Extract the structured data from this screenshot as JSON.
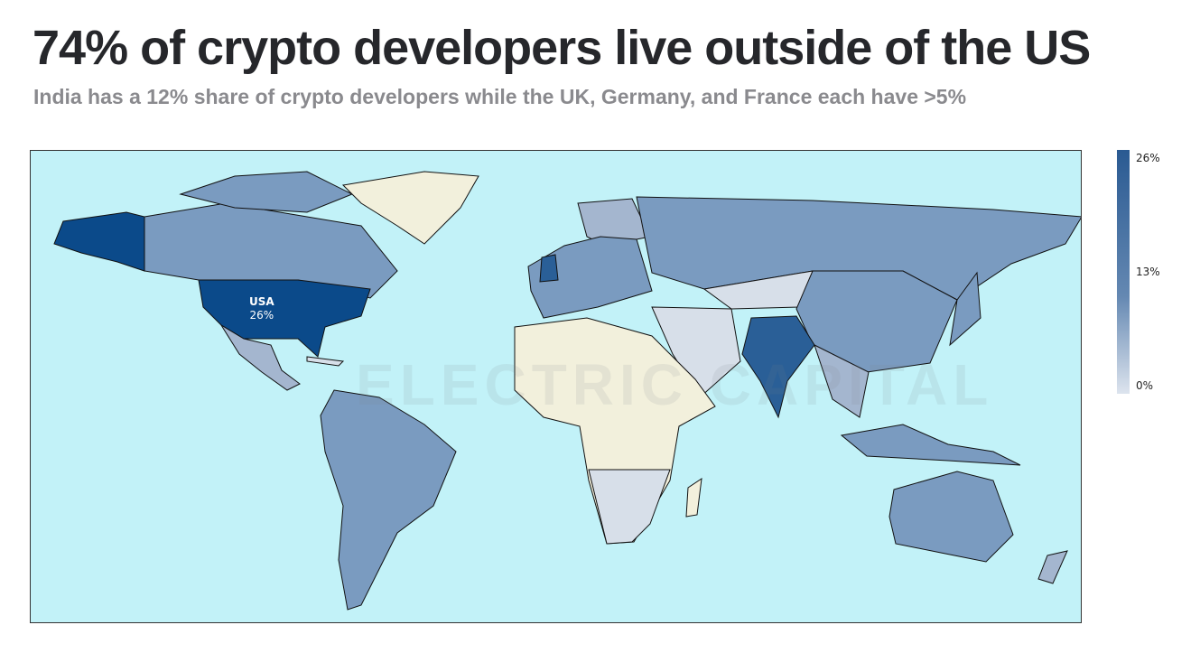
{
  "header": {
    "title": "74% of crypto developers live outside of the US",
    "subtitle": "India has a 12% share of crypto developers while the UK, Germany, and France each have >5%"
  },
  "map": {
    "watermark": "ELECTRIC CAPITAL",
    "annotation": {
      "country": "USA",
      "value": "26%"
    },
    "colors": {
      "ocean": "#c2f2f8",
      "max": "#0b4a8a",
      "high": "#2a5f97",
      "mid": "#7a9bc0",
      "low": "#d7dfe9",
      "no_data": "#f2f0dc"
    }
  },
  "legend": {
    "ticks": [
      "26%",
      "13%",
      "0%"
    ],
    "range": [
      0,
      26
    ],
    "unit": "%"
  }
}
